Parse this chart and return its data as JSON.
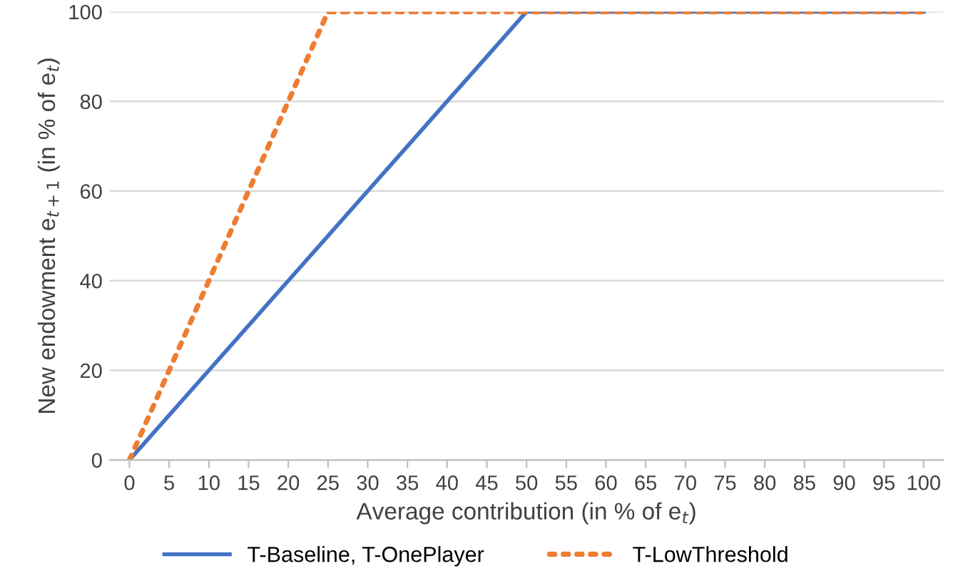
{
  "chart_data": {
    "type": "line",
    "xlabel": "Average contribution (in % of e$_{t}$)",
    "ylabel": "New endowment e$_{t+1}$ (in % of e$_{t}$)",
    "categories": [
      "0",
      "5",
      "10",
      "15",
      "20",
      "25",
      "30",
      "35",
      "40",
      "45",
      "50",
      "55",
      "60",
      "65",
      "70",
      "75",
      "80",
      "85",
      "90",
      "95",
      "100"
    ],
    "series": [
      {
        "name": "T-Baseline, T-OnePlayer",
        "color": "#4472c4",
        "line_style": "solid",
        "values": [
          0,
          10,
          20,
          30,
          40,
          50,
          60,
          70,
          80,
          90,
          100,
          100,
          100,
          100,
          100,
          100,
          100,
          100,
          100,
          100,
          100
        ]
      },
      {
        "name": "T-LowThreshold",
        "color": "#ed7d31",
        "line_style": "dotted",
        "values": [
          0,
          20,
          40,
          60,
          80,
          100,
          100,
          100,
          100,
          100,
          100,
          100,
          100,
          100,
          100,
          100,
          100,
          100,
          100,
          100,
          100
        ]
      }
    ],
    "ylim": [
      0,
      100
    ],
    "yticks": [
      0,
      20,
      40,
      60,
      80,
      100
    ],
    "grid": "y",
    "legend": "bottom",
    "marker": "none"
  }
}
